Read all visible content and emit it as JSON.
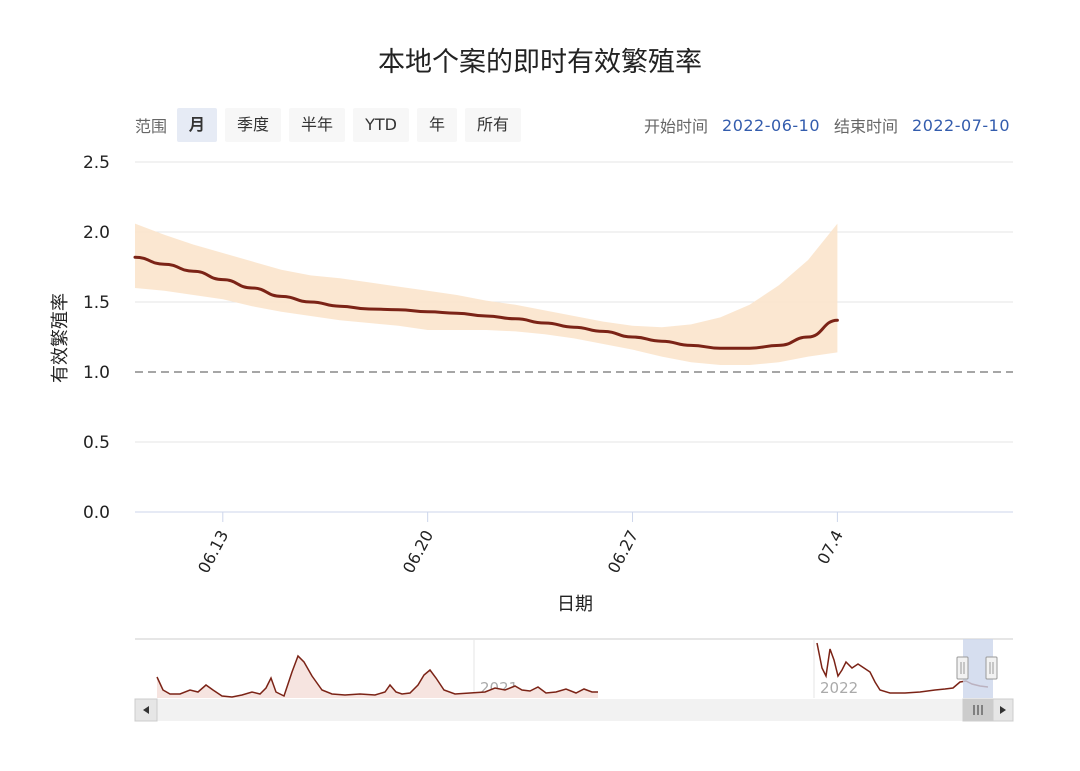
{
  "title": "本地个案的即时有效繁殖率",
  "range_selector": {
    "label": "范围",
    "buttons": [
      "月",
      "季度",
      "半年",
      "YTD",
      "年",
      "所有"
    ],
    "selected": "月"
  },
  "date_range": {
    "start_label": "开始时间",
    "start_value": "2022-06-10",
    "end_label": "结束时间",
    "end_value": "2022-07-10"
  },
  "colors": {
    "line": "#7b2316",
    "band": "#fae3c9",
    "threshold": "#888888",
    "grid": "#e6e6e6",
    "navigator_line": "#7b2316",
    "navigator_mask": "#ccd6eb"
  },
  "chart_data": {
    "type": "line",
    "title": "本地个案的即时有效繁殖率",
    "xlabel": "日期",
    "ylabel": "有效繁殖率",
    "ylim": [
      0,
      2.5
    ],
    "yticks": [
      "0.0",
      "0.5",
      "1.0",
      "1.5",
      "2.0",
      "2.5"
    ],
    "xlim": [
      "2022-06-10",
      "2022-07-10"
    ],
    "xticks": [
      {
        "label": "06.13",
        "date": "2022-06-13"
      },
      {
        "label": "06.20",
        "date": "2022-06-20"
      },
      {
        "label": "06.27",
        "date": "2022-06-27"
      },
      {
        "label": "07.4",
        "date": "2022-07-04"
      }
    ],
    "threshold": 1.0,
    "series": [
      {
        "values": [
          [
            "2022-06-10",
            1.82
          ],
          [
            "2022-06-11",
            1.77
          ],
          [
            "2022-06-12",
            1.72
          ],
          [
            "2022-06-13",
            1.66
          ],
          [
            "2022-06-14",
            1.6
          ],
          [
            "2022-06-15",
            1.54
          ],
          [
            "2022-06-16",
            1.5
          ],
          [
            "2022-06-17",
            1.47
          ],
          [
            "2022-06-18",
            1.45
          ],
          [
            "2022-06-19",
            1.445
          ],
          [
            "2022-06-20",
            1.43
          ],
          [
            "2022-06-21",
            1.42
          ],
          [
            "2022-06-22",
            1.4
          ],
          [
            "2022-06-23",
            1.38
          ],
          [
            "2022-06-24",
            1.35
          ],
          [
            "2022-06-25",
            1.32
          ],
          [
            "2022-06-26",
            1.29
          ],
          [
            "2022-06-27",
            1.25
          ],
          [
            "2022-06-28",
            1.22
          ],
          [
            "2022-06-29",
            1.19
          ],
          [
            "2022-06-30",
            1.17
          ],
          [
            "2022-07-01",
            1.17
          ],
          [
            "2022-07-02",
            1.19
          ],
          [
            "2022-07-03",
            1.25
          ],
          [
            "2022-07-04",
            1.37
          ]
        ]
      }
    ],
    "band": {
      "upper": [
        2.06,
        1.98,
        1.91,
        1.85,
        1.79,
        1.73,
        1.69,
        1.67,
        1.64,
        1.61,
        1.58,
        1.55,
        1.51,
        1.48,
        1.44,
        1.4,
        1.36,
        1.33,
        1.32,
        1.34,
        1.39,
        1.48,
        1.62,
        1.8,
        2.06
      ],
      "lower": [
        1.6,
        1.58,
        1.55,
        1.52,
        1.47,
        1.43,
        1.4,
        1.37,
        1.35,
        1.33,
        1.3,
        1.3,
        1.3,
        1.29,
        1.27,
        1.24,
        1.2,
        1.16,
        1.11,
        1.07,
        1.05,
        1.05,
        1.07,
        1.11,
        1.14
      ]
    },
    "navigator": {
      "labels": [
        "2021",
        "2022"
      ]
    }
  }
}
